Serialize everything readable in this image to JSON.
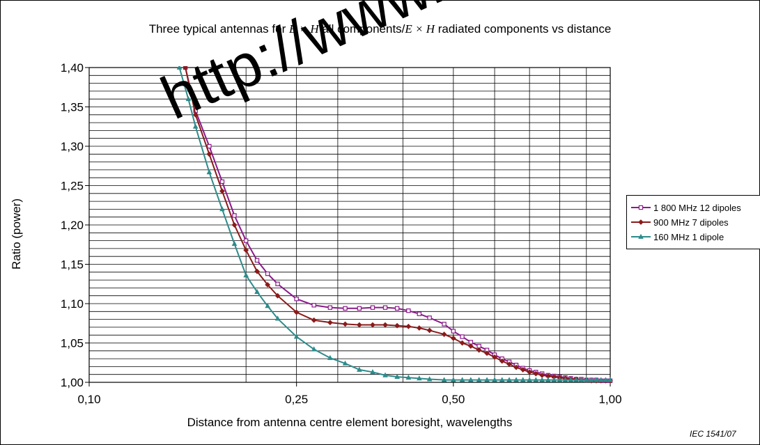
{
  "chart_data": {
    "type": "line",
    "title_prefix": "Three typical antennas for ",
    "title_math1": "E × H",
    "title_middle": " all components/",
    "title_math2": "E × H",
    "title_suffix": " radiated components vs distance",
    "xlabel": "Distance from antenna centre element boresight, wavelengths",
    "ylabel": "Ratio (power)",
    "xscale": "log",
    "xlim": [
      0.1,
      1.0
    ],
    "ylim": [
      1.0,
      1.4
    ],
    "xticks": [
      {
        "value": 0.1,
        "label": "0,10"
      },
      {
        "value": 0.25,
        "label": "0,25"
      },
      {
        "value": 0.5,
        "label": "0,50"
      },
      {
        "value": 1.0,
        "label": "1,00"
      }
    ],
    "yticks": [
      {
        "value": 1.0,
        "label": "1,00"
      },
      {
        "value": 1.05,
        "label": "1,05"
      },
      {
        "value": 1.1,
        "label": "1,10"
      },
      {
        "value": 1.15,
        "label": "1,15"
      },
      {
        "value": 1.2,
        "label": "1,20"
      },
      {
        "value": 1.25,
        "label": "1,25"
      },
      {
        "value": 1.3,
        "label": "1,30"
      },
      {
        "value": 1.35,
        "label": "1,35"
      },
      {
        "value": 1.4,
        "label": "1,40"
      }
    ],
    "x_gridlines": [
      0.2,
      0.25,
      0.3,
      0.4,
      0.5,
      0.6,
      0.7,
      0.8,
      0.9
    ],
    "y_minor_step": 0.01,
    "grid": true,
    "legend_position": "right",
    "series": [
      {
        "name": "1 800 MHz 12 dipoles",
        "color": "#8b1a8b",
        "marker": "square",
        "x": [
          0.153,
          0.16,
          0.17,
          0.18,
          0.19,
          0.2,
          0.21,
          0.22,
          0.23,
          0.25,
          0.27,
          0.29,
          0.31,
          0.33,
          0.35,
          0.37,
          0.39,
          0.41,
          0.43,
          0.45,
          0.48,
          0.5,
          0.52,
          0.54,
          0.56,
          0.58,
          0.6,
          0.62,
          0.64,
          0.66,
          0.68,
          0.7,
          0.72,
          0.74,
          0.76,
          0.78,
          0.8,
          0.82,
          0.84,
          0.86,
          0.88,
          0.9,
          0.92,
          0.94,
          0.96,
          0.98,
          1.0
        ],
        "y": [
          1.4,
          1.345,
          1.3,
          1.255,
          1.212,
          1.18,
          1.155,
          1.138,
          1.125,
          1.106,
          1.098,
          1.095,
          1.094,
          1.094,
          1.095,
          1.095,
          1.094,
          1.091,
          1.087,
          1.082,
          1.074,
          1.065,
          1.058,
          1.051,
          1.046,
          1.041,
          1.035,
          1.03,
          1.026,
          1.022,
          1.018,
          1.015,
          1.013,
          1.011,
          1.009,
          1.008,
          1.007,
          1.006,
          1.005,
          1.004,
          1.004,
          1.003,
          1.003,
          1.003,
          1.002,
          1.002,
          1.002
        ]
      },
      {
        "name": "900 MHz 7 dipoles",
        "color": "#8b1a1a",
        "marker": "diamond",
        "x": [
          0.153,
          0.16,
          0.17,
          0.18,
          0.19,
          0.2,
          0.21,
          0.22,
          0.23,
          0.25,
          0.27,
          0.29,
          0.31,
          0.33,
          0.35,
          0.37,
          0.39,
          0.41,
          0.43,
          0.45,
          0.48,
          0.5,
          0.52,
          0.54,
          0.56,
          0.58,
          0.6,
          0.62,
          0.64,
          0.66,
          0.68,
          0.7,
          0.72,
          0.74,
          0.76,
          0.78,
          0.8,
          0.82,
          0.84,
          0.86,
          0.88,
          0.9,
          0.92,
          0.94,
          0.96,
          0.98,
          1.0
        ],
        "y": [
          1.4,
          1.34,
          1.29,
          1.243,
          1.2,
          1.168,
          1.141,
          1.124,
          1.11,
          1.089,
          1.079,
          1.076,
          1.074,
          1.073,
          1.073,
          1.073,
          1.072,
          1.071,
          1.069,
          1.066,
          1.061,
          1.056,
          1.05,
          1.046,
          1.041,
          1.037,
          1.032,
          1.027,
          1.023,
          1.019,
          1.016,
          1.013,
          1.011,
          1.009,
          1.008,
          1.007,
          1.006,
          1.005,
          1.004,
          1.004,
          1.003,
          1.003,
          1.002,
          1.002,
          1.002,
          1.002,
          1.002
        ]
      },
      {
        "name": "160 MHz 1 dipole",
        "color": "#2e8b8b",
        "marker": "triangle",
        "x": [
          0.149,
          0.155,
          0.16,
          0.17,
          0.18,
          0.19,
          0.2,
          0.21,
          0.22,
          0.23,
          0.25,
          0.27,
          0.29,
          0.31,
          0.33,
          0.35,
          0.37,
          0.39,
          0.41,
          0.43,
          0.45,
          0.48,
          0.5,
          0.52,
          0.54,
          0.56,
          0.58,
          0.6,
          0.62,
          0.64,
          0.66,
          0.68,
          0.7,
          0.72,
          0.74,
          0.76,
          0.78,
          0.8,
          0.82,
          0.84,
          0.86,
          0.88,
          0.9,
          0.92,
          0.94,
          0.96,
          0.98,
          1.0
        ],
        "y": [
          1.4,
          1.36,
          1.325,
          1.267,
          1.22,
          1.176,
          1.136,
          1.115,
          1.097,
          1.081,
          1.058,
          1.042,
          1.031,
          1.024,
          1.016,
          1.013,
          1.009,
          1.007,
          1.006,
          1.005,
          1.004,
          1.003,
          1.003,
          1.003,
          1.003,
          1.003,
          1.003,
          1.003,
          1.003,
          1.003,
          1.003,
          1.003,
          1.003,
          1.003,
          1.003,
          1.003,
          1.003,
          1.003,
          1.003,
          1.003,
          1.003,
          1.003,
          1.003,
          1.003,
          1.003,
          1.003,
          1.003,
          1.003
        ]
      }
    ]
  },
  "watermark": "http://www.chin",
  "reference": "IEC  1541/07"
}
